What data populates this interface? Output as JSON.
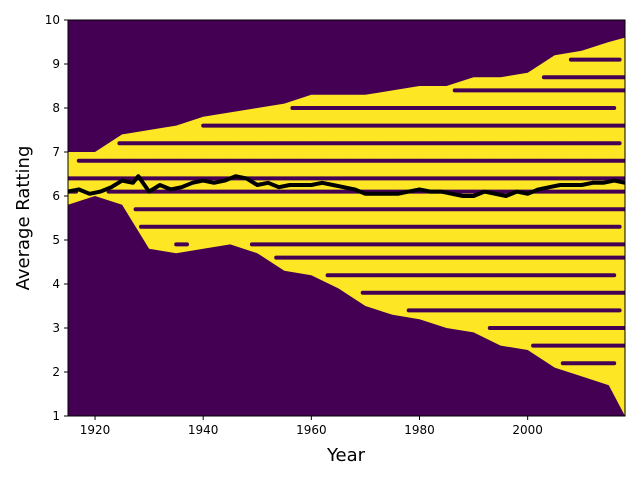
{
  "chart_data": {
    "type": "heatmap",
    "title": "",
    "xlabel": "Year",
    "ylabel": "Average Ratting",
    "xlim": [
      1915,
      2018
    ],
    "ylim": [
      1,
      10
    ],
    "x_ticks": [
      1920,
      1940,
      1960,
      1980,
      2000
    ],
    "x_tick_labels": [
      "1920",
      "1940",
      "1960",
      "1980",
      "2000"
    ],
    "y_ticks": [
      1,
      2,
      3,
      4,
      5,
      6,
      7,
      8,
      9,
      10
    ],
    "y_tick_labels": [
      "1",
      "2",
      "3",
      "4",
      "5",
      "6",
      "7",
      "8",
      "9",
      "10"
    ],
    "grid": false,
    "colors": {
      "background": "#440154",
      "filled": "#fde725",
      "line": "#000000"
    },
    "heatmap": {
      "description_values": "Occupied rating cells per year band (yellow) on a dark background; band bounds in rating units",
      "band_rows": [
        {
          "x": 1915,
          "low": 5.8,
          "high": 7.0
        },
        {
          "x": 1920,
          "low": 6.0,
          "high": 7.0
        },
        {
          "x": 1925,
          "low": 5.8,
          "high": 7.4
        },
        {
          "x": 1930,
          "low": 4.8,
          "high": 7.5
        },
        {
          "x": 1935,
          "low": 4.7,
          "high": 7.6
        },
        {
          "x": 1940,
          "low": 4.8,
          "high": 7.8
        },
        {
          "x": 1945,
          "low": 4.9,
          "high": 7.9
        },
        {
          "x": 1950,
          "low": 4.7,
          "high": 8.0
        },
        {
          "x": 1955,
          "low": 4.3,
          "high": 8.1
        },
        {
          "x": 1960,
          "low": 4.2,
          "high": 8.3
        },
        {
          "x": 1965,
          "low": 3.9,
          "high": 8.3
        },
        {
          "x": 1970,
          "low": 3.5,
          "high": 8.3
        },
        {
          "x": 1975,
          "low": 3.3,
          "high": 8.4
        },
        {
          "x": 1980,
          "low": 3.2,
          "high": 8.5
        },
        {
          "x": 1985,
          "low": 3.0,
          "high": 8.5
        },
        {
          "x": 1990,
          "low": 2.9,
          "high": 8.7
        },
        {
          "x": 1995,
          "low": 2.6,
          "high": 8.7
        },
        {
          "x": 2000,
          "low": 2.5,
          "high": 8.8
        },
        {
          "x": 2005,
          "low": 2.1,
          "high": 9.2
        },
        {
          "x": 2010,
          "low": 1.9,
          "high": 9.3
        },
        {
          "x": 2015,
          "low": 1.7,
          "high": 9.5
        },
        {
          "x": 2018,
          "low": 1.0,
          "high": 9.6
        }
      ],
      "dark_stripe_ratings": [
        2.2,
        2.6,
        3.0,
        3.4,
        3.8,
        4.2,
        4.6,
        4.9,
        5.3,
        5.7,
        6.1,
        6.4,
        6.8,
        7.2,
        7.6,
        8.0,
        8.4,
        8.7,
        9.1
      ]
    },
    "series": [
      {
        "values_x": [
          1915,
          1917,
          1919,
          1921,
          1923,
          1925,
          1927,
          1928,
          1930,
          1932,
          1934,
          1936,
          1938,
          1940,
          1942,
          1944,
          1946,
          1948,
          1950,
          1952,
          1954,
          1956,
          1958,
          1960,
          1962,
          1964,
          1966,
          1968,
          1970,
          1972,
          1974,
          1976,
          1978,
          1980,
          1982,
          1984,
          1986,
          1988,
          1990,
          1992,
          1994,
          1996,
          1998,
          2000,
          2002,
          2004,
          2006,
          2008,
          2010,
          2012,
          2014,
          2016,
          2018
        ],
        "values_y": [
          6.1,
          6.15,
          6.05,
          6.1,
          6.2,
          6.35,
          6.3,
          6.45,
          6.1,
          6.25,
          6.15,
          6.2,
          6.3,
          6.35,
          6.3,
          6.35,
          6.45,
          6.4,
          6.25,
          6.3,
          6.2,
          6.25,
          6.25,
          6.25,
          6.3,
          6.25,
          6.2,
          6.15,
          6.05,
          6.05,
          6.05,
          6.05,
          6.1,
          6.15,
          6.1,
          6.1,
          6.05,
          6.0,
          6.0,
          6.1,
          6.05,
          6.0,
          6.1,
          6.05,
          6.15,
          6.2,
          6.25,
          6.25,
          6.25,
          6.3,
          6.3,
          6.35,
          6.3
        ]
      }
    ]
  }
}
